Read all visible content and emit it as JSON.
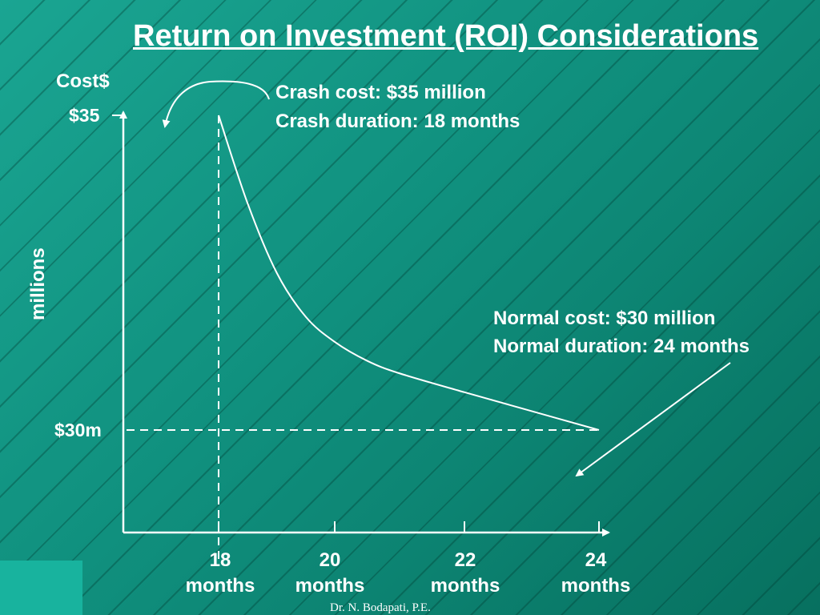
{
  "title": "Return on Investment (ROI) Considerations",
  "chart_data": {
    "type": "line",
    "y_axis": {
      "top_label": "Cost$",
      "side_label": "millions",
      "ticks": [
        {
          "value": 35,
          "label": "$35"
        },
        {
          "value": 30,
          "label": "$30m"
        }
      ]
    },
    "x_axis": {
      "ticks": [
        {
          "value": 18,
          "line1": "18",
          "line2": "months"
        },
        {
          "value": 20,
          "line1": "20",
          "line2": "months"
        },
        {
          "value": 22,
          "line1": "22",
          "line2": "months"
        },
        {
          "value": 24,
          "line1": "24",
          "line2": "months"
        }
      ]
    },
    "series": [
      {
        "x": [
          18,
          18.5,
          19,
          19.5,
          20,
          20.5,
          21,
          22,
          23,
          24
        ],
        "y": [
          35,
          33.6,
          32.5,
          31.8,
          31.4,
          31.1,
          30.9,
          30.6,
          30.3,
          30
        ]
      }
    ],
    "annotations": {
      "crash": [
        "Crash cost:  $35 million",
        "Crash duration:  18 months"
      ],
      "normal": [
        "Normal cost:  $30 million",
        "Normal duration:  24 months"
      ]
    }
  },
  "footer": "Dr. N. Bodapati, P.E."
}
